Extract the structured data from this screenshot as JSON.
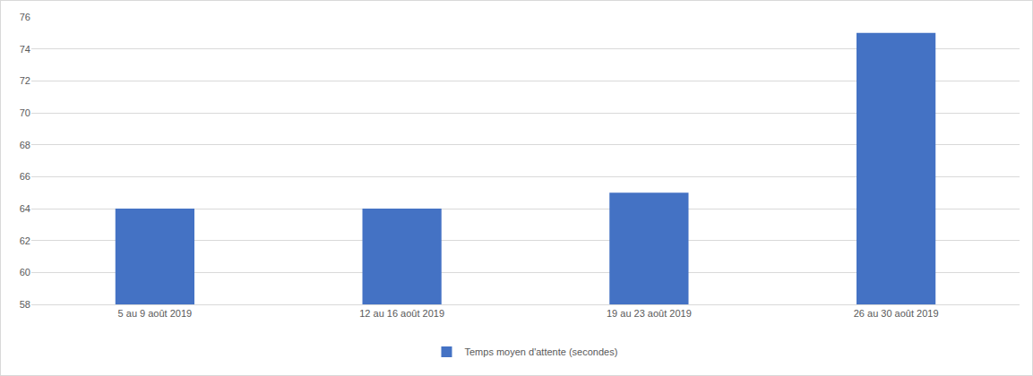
{
  "chart_data": {
    "type": "bar",
    "categories": [
      "5 au 9 août 2019",
      "12 au 16 août 2019",
      "19 au 23 août 2019",
      "26 au 30 août 2019"
    ],
    "series": [
      {
        "name": "Temps moyen d'attente (secondes)",
        "color": "#4472c4",
        "values": [
          64,
          64,
          65,
          75
        ]
      }
    ],
    "ylim": [
      58,
      76
    ],
    "yticks": [
      58,
      60,
      62,
      64,
      66,
      68,
      70,
      72,
      74,
      76
    ],
    "grid": true,
    "legend": "bottom"
  }
}
